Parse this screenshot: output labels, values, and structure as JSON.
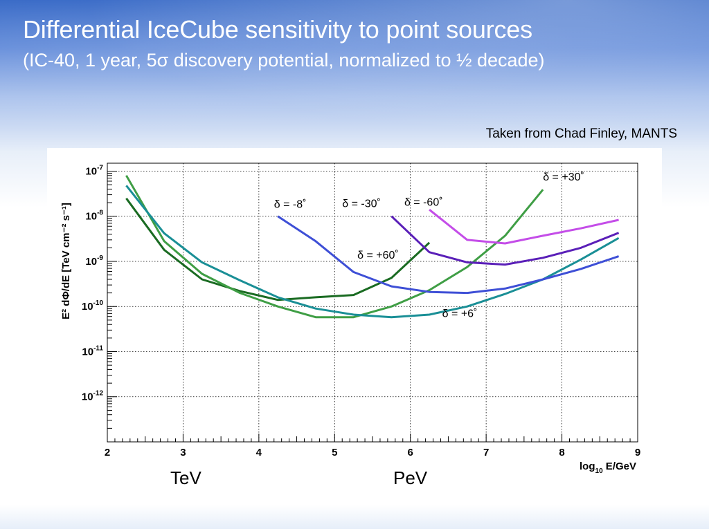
{
  "slide": {
    "title": "Differential IceCube sensitivity to point sources",
    "subtitle": "(IC-40, 1 year, 5σ discovery potential, normalized to ½ decade)",
    "credit": "Taken from Chad Finley, MANTS",
    "energy_labels": [
      "TeV",
      "PeV"
    ]
  },
  "chart_data": {
    "type": "line",
    "title": "",
    "xlabel": "log10 E/GeV",
    "ylabel": "E² dΦ/dE  [TeV cm⁻² s⁻¹]",
    "xlim": [
      2,
      9
    ],
    "ylim": [
      1e-13,
      1.5e-07
    ],
    "y_scale": "log",
    "grid": true,
    "legend": "none (inline labels)",
    "x_ticks": [
      "2",
      "3",
      "4",
      "5",
      "6",
      "7",
      "8",
      "9"
    ],
    "y_ticks": [
      {
        "value": 1e-07,
        "mant": "10",
        "exp": "-7"
      },
      {
        "value": 1e-08,
        "mant": "10",
        "exp": "-8"
      },
      {
        "value": 1e-09,
        "mant": "10",
        "exp": "-9"
      },
      {
        "value": 1e-10,
        "mant": "10",
        "exp": "-10"
      },
      {
        "value": 1e-11,
        "mant": "10",
        "exp": "-11"
      },
      {
        "value": 1e-12,
        "mant": "10",
        "exp": "-12"
      }
    ],
    "series": [
      {
        "name": "δ = +60˚",
        "color": "#1a6b22",
        "x": [
          2.25,
          2.75,
          3.25,
          3.75,
          4.25,
          4.75,
          5.25,
          5.75,
          6.25
        ],
        "y": [
          2.5e-08,
          1.8e-09,
          4e-10,
          2.2e-10,
          1.4e-10,
          1.6e-10,
          1.8e-10,
          4.3e-10,
          2.6e-09
        ],
        "label_at": [
          5.3,
          1.15e-09
        ]
      },
      {
        "name": "δ = +30˚",
        "color": "#3f9e45",
        "x": [
          2.25,
          2.75,
          3.25,
          3.75,
          4.25,
          4.75,
          5.25,
          5.75,
          6.25,
          6.75,
          7.25,
          7.75
        ],
        "y": [
          8e-08,
          2.8e-09,
          5.3e-10,
          2e-10,
          1e-10,
          5.8e-11,
          5.8e-11,
          1e-10,
          2.3e-10,
          7.5e-10,
          3.7e-09,
          3.9e-08
        ],
        "label_at": [
          7.75,
          6.2e-08
        ]
      },
      {
        "name": "δ = +6˚",
        "color": "#1a8f96",
        "x": [
          2.25,
          2.75,
          3.25,
          3.75,
          4.25,
          4.75,
          5.25,
          5.75,
          6.25,
          6.75,
          7.25,
          7.75,
          8.25,
          8.75
        ],
        "y": [
          4.8e-08,
          4.2e-09,
          9.5e-10,
          3.8e-10,
          1.6e-10,
          9e-11,
          6.6e-11,
          5.8e-11,
          6.6e-11,
          1e-10,
          1.9e-10,
          4e-10,
          1.1e-09,
          3.3e-09
        ],
        "label_at": [
          6.42,
          5.8e-11
        ]
      },
      {
        "name": "δ = -8˚",
        "color": "#3e4fd6",
        "x": [
          4.25,
          4.75,
          5.25,
          5.75,
          6.25,
          6.75,
          7.25,
          7.75,
          8.25,
          8.75
        ],
        "y": [
          1e-08,
          2.8e-09,
          5.8e-10,
          2.8e-10,
          2.1e-10,
          2e-10,
          2.5e-10,
          4e-10,
          6.8e-10,
          1.3e-09
        ],
        "label_at": [
          4.2,
          1.55e-08
        ]
      },
      {
        "name": "δ = -30˚",
        "color": "#5a1fb8",
        "x": [
          5.75,
          6.25,
          6.75,
          7.25,
          7.75,
          8.25,
          8.75
        ],
        "y": [
          1e-08,
          1.6e-09,
          9.5e-10,
          8.5e-10,
          1.2e-09,
          2e-09,
          4.3e-09
        ],
        "label_at": [
          5.1,
          1.6e-08
        ]
      },
      {
        "name": "δ = -60˚",
        "color": "#c44de8",
        "x": [
          6.25,
          6.75,
          7.25,
          7.75,
          8.25,
          8.75
        ],
        "y": [
          1.4e-08,
          3e-09,
          2.5e-09,
          3.7e-09,
          5.4e-09,
          8.3e-09
        ],
        "label_at": [
          5.92,
          1.7e-08
        ]
      }
    ]
  }
}
